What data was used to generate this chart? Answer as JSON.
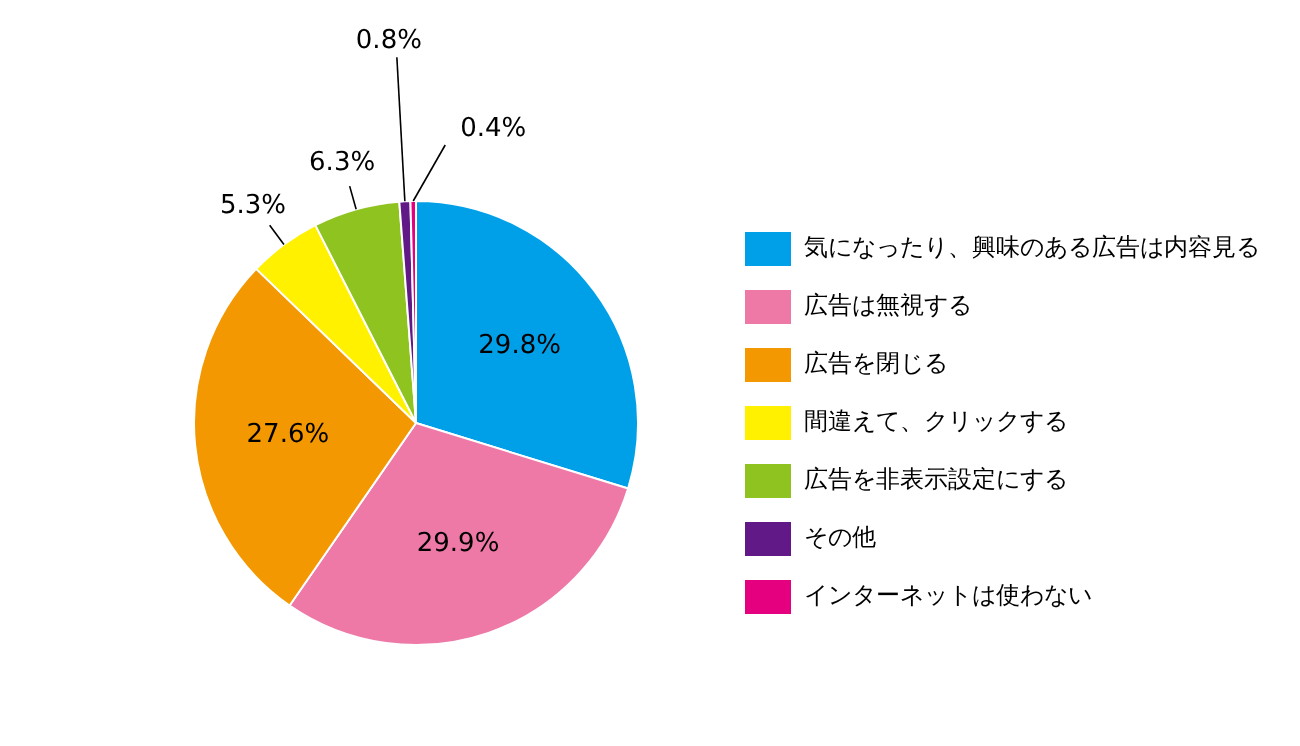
{
  "chart_data": {
    "type": "pie",
    "categories": [
      "気になったり、興味のある広告は内容見る",
      "広告は無視する",
      "広告を閉じる",
      "間違えて、クリックする",
      "広告を非表示設定にする",
      "その他",
      "インターネットは使わない"
    ],
    "values": [
      29.8,
      29.9,
      27.6,
      5.3,
      6.3,
      0.8,
      0.4
    ],
    "colors": [
      "#00a0e9",
      "#ee79a7",
      "#f39800",
      "#fff100",
      "#8fc31f",
      "#601986",
      "#e4007f"
    ],
    "value_labels": [
      "29.8%",
      "29.9%",
      "27.6%",
      "5.3%",
      "6.3%",
      "0.8%",
      "0.4%"
    ],
    "legend": "right"
  }
}
